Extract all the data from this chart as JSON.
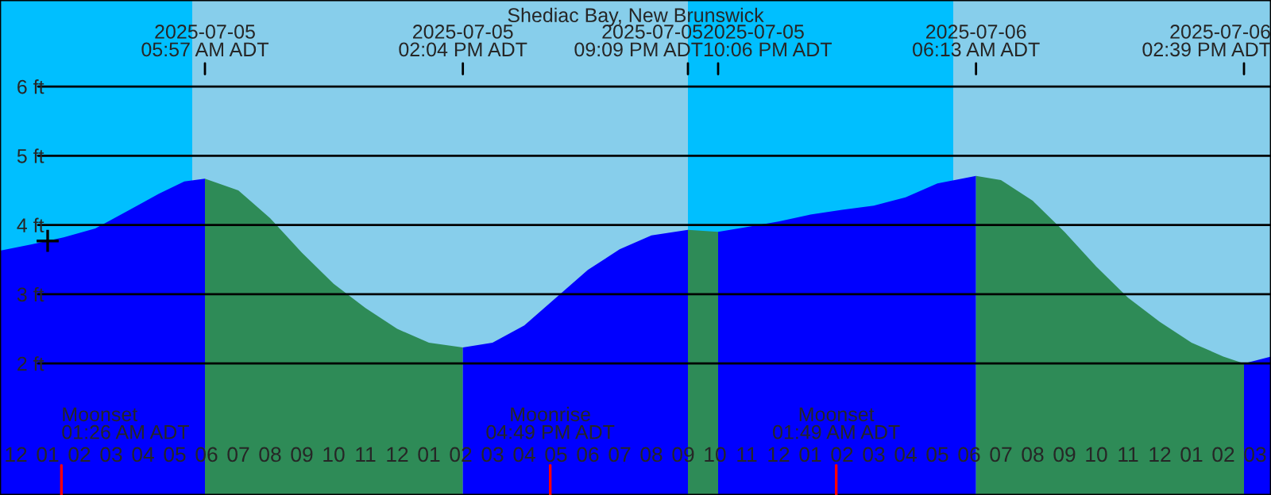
{
  "chart_data": {
    "type": "area",
    "title": "Shediac Bay, New Brunswick",
    "xlim": [
      "2025-07-04T23:30",
      "2025-07-06T15:30"
    ],
    "ylim": [
      0.1,
      7.25
    ],
    "xticks": [
      {
        "value": "2025-07-05T00:00",
        "label": "12"
      },
      {
        "value": "2025-07-05T01:00",
        "label": "01"
      },
      {
        "value": "2025-07-05T02:00",
        "label": "02"
      },
      {
        "value": "2025-07-05T03:00",
        "label": "03"
      },
      {
        "value": "2025-07-05T04:00",
        "label": "04"
      },
      {
        "value": "2025-07-05T05:00",
        "label": "05"
      },
      {
        "value": "2025-07-05T06:00",
        "label": "06"
      },
      {
        "value": "2025-07-05T07:00",
        "label": "07"
      },
      {
        "value": "2025-07-05T08:00",
        "label": "08"
      },
      {
        "value": "2025-07-05T09:00",
        "label": "09"
      },
      {
        "value": "2025-07-05T10:00",
        "label": "10"
      },
      {
        "value": "2025-07-05T11:00",
        "label": "11"
      },
      {
        "value": "2025-07-05T12:00",
        "label": "12"
      },
      {
        "value": "2025-07-05T13:00",
        "label": "01"
      },
      {
        "value": "2025-07-05T14:00",
        "label": "02"
      },
      {
        "value": "2025-07-05T15:00",
        "label": "03"
      },
      {
        "value": "2025-07-05T16:00",
        "label": "04"
      },
      {
        "value": "2025-07-05T17:00",
        "label": "05"
      },
      {
        "value": "2025-07-05T18:00",
        "label": "06"
      },
      {
        "value": "2025-07-05T19:00",
        "label": "07"
      },
      {
        "value": "2025-07-05T20:00",
        "label": "08"
      },
      {
        "value": "2025-07-05T21:00",
        "label": "09"
      },
      {
        "value": "2025-07-05T22:00",
        "label": "10"
      },
      {
        "value": "2025-07-05T23:00",
        "label": "11"
      },
      {
        "value": "2025-07-06T00:00",
        "label": "12"
      },
      {
        "value": "2025-07-06T01:00",
        "label": "01"
      },
      {
        "value": "2025-07-06T02:00",
        "label": "02"
      },
      {
        "value": "2025-07-06T03:00",
        "label": "03"
      },
      {
        "value": "2025-07-06T04:00",
        "label": "04"
      },
      {
        "value": "2025-07-06T05:00",
        "label": "05"
      },
      {
        "value": "2025-07-06T06:00",
        "label": "06"
      },
      {
        "value": "2025-07-06T07:00",
        "label": "07"
      },
      {
        "value": "2025-07-06T08:00",
        "label": "08"
      },
      {
        "value": "2025-07-06T09:00",
        "label": "09"
      },
      {
        "value": "2025-07-06T10:00",
        "label": "10"
      },
      {
        "value": "2025-07-06T11:00",
        "label": "11"
      },
      {
        "value": "2025-07-06T12:00",
        "label": "12"
      },
      {
        "value": "2025-07-06T13:00",
        "label": "01"
      },
      {
        "value": "2025-07-06T14:00",
        "label": "02"
      },
      {
        "value": "2025-07-06T15:00",
        "label": "03"
      }
    ],
    "yticks": [
      {
        "value": 2,
        "label": "2 ft"
      },
      {
        "value": 3,
        "label": "3 ft"
      },
      {
        "value": 4,
        "label": "4 ft"
      },
      {
        "value": 5,
        "label": "5 ft"
      },
      {
        "value": 6,
        "label": "6 ft"
      }
    ],
    "grid": "y",
    "bands": [
      {
        "axis": "x",
        "from": "2025-07-04T23:30",
        "to": "2025-07-05T05:33",
        "color": "#00bfff"
      },
      {
        "axis": "x",
        "from": "2025-07-05T05:33",
        "to": "2025-07-05T21:09",
        "color": "#87ceeb"
      },
      {
        "axis": "x",
        "from": "2025-07-05T21:09",
        "to": "2025-07-06T05:30",
        "color": "#00bfff"
      },
      {
        "axis": "x",
        "from": "2025-07-06T05:30",
        "to": "2025-07-06T15:30",
        "color": "#87ceeb"
      }
    ],
    "ref_lines": [
      {
        "axis": "x",
        "value": "2025-07-05T05:57",
        "label": "2025-07-05\n05:57 AM ADT",
        "color": "#000000"
      },
      {
        "axis": "x",
        "value": "2025-07-05T14:04",
        "label": "2025-07-05\n02:04 PM ADT",
        "color": "#000000"
      },
      {
        "axis": "x",
        "value": "2025-07-05T21:09",
        "label": "2025-07-05\n09:09 PM ADT",
        "color": "#000000"
      },
      {
        "axis": "x",
        "value": "2025-07-05T22:06",
        "label": "2025-07-05\n10:06 PM ADT",
        "color": "#000000"
      },
      {
        "axis": "x",
        "value": "2025-07-06T06:13",
        "label": "2025-07-06\n06:13 AM ADT",
        "color": "#000000"
      },
      {
        "axis": "x",
        "value": "2025-07-06T14:39",
        "label": "2025-07-06\n02:39 PM ADT",
        "color": "#000000"
      },
      {
        "axis": "x",
        "value": "2025-07-05T01:26",
        "label": "Moonset\n01:26 AM ADT",
        "color": "#ff0000"
      },
      {
        "axis": "x",
        "value": "2025-07-05T16:49",
        "label": "Moonrise\n04:49 PM ADT",
        "color": "#ff0000"
      },
      {
        "axis": "x",
        "value": "2025-07-06T01:49",
        "label": "Moonset\n01:49 AM ADT",
        "color": "#ff0000"
      }
    ],
    "series": [
      {
        "color": "#0000ff",
        "x": [
          "2025-07-04T23:30",
          "2025-07-05T00:30",
          "2025-07-05T01:30",
          "2025-07-05T02:30",
          "2025-07-05T03:30",
          "2025-07-05T04:30",
          "2025-07-05T05:18",
          "2025-07-05T05:57"
        ],
        "values": [
          3.63,
          3.72,
          3.82,
          3.95,
          4.2,
          4.45,
          4.63,
          4.67
        ]
      },
      {
        "color": "#2e8b57",
        "x": [
          "2025-07-05T05:57",
          "2025-07-05T07:00",
          "2025-07-05T08:00",
          "2025-07-05T09:00",
          "2025-07-05T10:00",
          "2025-07-05T11:00",
          "2025-07-05T12:00",
          "2025-07-05T13:00",
          "2025-07-05T14:04"
        ],
        "values": [
          4.67,
          4.5,
          4.1,
          3.6,
          3.15,
          2.8,
          2.5,
          2.3,
          2.23
        ]
      },
      {
        "color": "#0000ff",
        "x": [
          "2025-07-05T14:04",
          "2025-07-05T15:00",
          "2025-07-05T16:00",
          "2025-07-05T17:00",
          "2025-07-05T18:00",
          "2025-07-05T19:00",
          "2025-07-05T20:00",
          "2025-07-05T21:09"
        ],
        "values": [
          2.23,
          2.3,
          2.55,
          2.95,
          3.35,
          3.65,
          3.85,
          3.93
        ]
      },
      {
        "color": "#2e8b57",
        "x": [
          "2025-07-05T21:09",
          "2025-07-05T22:06"
        ],
        "values": [
          3.93,
          3.9
        ]
      },
      {
        "color": "#0000ff",
        "x": [
          "2025-07-05T22:06",
          "2025-07-05T23:00",
          "2025-07-06T00:00",
          "2025-07-06T01:00",
          "2025-07-06T02:00",
          "2025-07-06T03:00",
          "2025-07-06T04:00",
          "2025-07-06T05:00",
          "2025-07-06T06:13"
        ],
        "values": [
          3.9,
          3.97,
          4.05,
          4.15,
          4.22,
          4.28,
          4.4,
          4.6,
          4.71
        ]
      },
      {
        "color": "#2e8b57",
        "x": [
          "2025-07-06T06:13",
          "2025-07-06T07:00",
          "2025-07-06T08:00",
          "2025-07-06T09:00",
          "2025-07-06T10:00",
          "2025-07-06T11:00",
          "2025-07-06T12:00",
          "2025-07-06T13:00",
          "2025-07-06T14:00",
          "2025-07-06T14:39"
        ],
        "values": [
          4.71,
          4.65,
          4.35,
          3.9,
          3.4,
          2.95,
          2.6,
          2.3,
          2.1,
          2.0
        ]
      },
      {
        "color": "#0000ff",
        "x": [
          "2025-07-06T14:39",
          "2025-07-06T15:30"
        ],
        "values": [
          2.0,
          2.1
        ]
      },
      {
        "type": "scatter",
        "marker": "cross",
        "color": "#000000",
        "x": [
          "2025-07-05T01:00"
        ],
        "values": [
          3.77
        ]
      }
    ]
  }
}
